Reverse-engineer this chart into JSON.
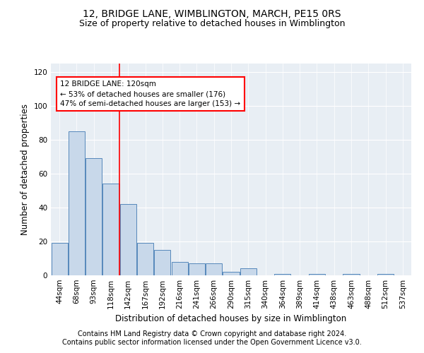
{
  "title1": "12, BRIDGE LANE, WIMBLINGTON, MARCH, PE15 0RS",
  "title2": "Size of property relative to detached houses in Wimblington",
  "xlabel": "Distribution of detached houses by size in Wimblington",
  "ylabel": "Number of detached properties",
  "categories": [
    "44sqm",
    "68sqm",
    "93sqm",
    "118sqm",
    "142sqm",
    "167sqm",
    "192sqm",
    "216sqm",
    "241sqm",
    "266sqm",
    "290sqm",
    "315sqm",
    "340sqm",
    "364sqm",
    "389sqm",
    "414sqm",
    "438sqm",
    "463sqm",
    "488sqm",
    "512sqm",
    "537sqm"
  ],
  "values": [
    19,
    85,
    69,
    54,
    42,
    19,
    15,
    8,
    7,
    7,
    2,
    4,
    0,
    1,
    0,
    1,
    0,
    1,
    0,
    1,
    0
  ],
  "bar_color": "#c8d8ea",
  "bar_edge_color": "#5588bb",
  "red_line_index": 3,
  "annotation_line1": "12 BRIDGE LANE: 120sqm",
  "annotation_line2": "← 53% of detached houses are smaller (176)",
  "annotation_line3": "47% of semi-detached houses are larger (153) →",
  "ylim": [
    0,
    125
  ],
  "yticks": [
    0,
    20,
    40,
    60,
    80,
    100,
    120
  ],
  "footer1": "Contains HM Land Registry data © Crown copyright and database right 2024.",
  "footer2": "Contains public sector information licensed under the Open Government Licence v3.0.",
  "bg_color": "#ffffff",
  "plot_bg_color": "#e8eef4",
  "title1_fontsize": 10,
  "title2_fontsize": 9,
  "xlabel_fontsize": 8.5,
  "ylabel_fontsize": 8.5,
  "tick_fontsize": 7.5,
  "footer_fontsize": 7
}
